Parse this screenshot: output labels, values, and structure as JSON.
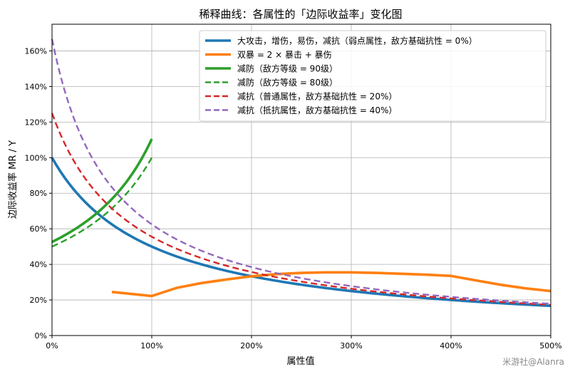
{
  "chart_data": {
    "type": "line",
    "title": "稀释曲线：各属性的「边际收益率」变化图",
    "xlabel": "属性值",
    "ylabel": "边际收益率 MR / Y",
    "xlim": [
      0,
      5
    ],
    "ylim": [
      0,
      1.75
    ],
    "x_ticks": [
      0,
      1,
      2,
      3,
      4,
      5
    ],
    "x_tick_labels": [
      "0%",
      "100%",
      "200%",
      "300%",
      "400%",
      "500%"
    ],
    "y_ticks": [
      0,
      0.2,
      0.4,
      0.6,
      0.8,
      1.0,
      1.2,
      1.4,
      1.6
    ],
    "y_tick_labels": [
      "0%",
      "20%",
      "40%",
      "60%",
      "80%",
      "100%",
      "120%",
      "140%",
      "160%"
    ],
    "grid": true,
    "legend_position": "top-right",
    "series": [
      {
        "name": "大攻击，增伤，易伤，减抗（弱点属性，敌方基础抗性 = 0%）",
        "color": "#1f77b4",
        "style": "solid",
        "curve": "1/(1+x)",
        "coef": 1.0,
        "x_range": [
          0,
          5
        ]
      },
      {
        "name": "双暴 = 2 × 暴击 + 暴伤",
        "color": "#ff7f0e",
        "style": "solid",
        "x": [
          0.6,
          1.0,
          1.25,
          1.5,
          1.75,
          2.0,
          2.25,
          2.5,
          2.75,
          3.0,
          3.25,
          3.5,
          3.75,
          4.0,
          4.25,
          4.5,
          4.75,
          5.0
        ],
        "y": [
          0.245,
          0.222,
          0.268,
          0.295,
          0.315,
          0.333,
          0.345,
          0.352,
          0.355,
          0.355,
          0.352,
          0.347,
          0.342,
          0.335,
          0.31,
          0.285,
          0.265,
          0.25
        ]
      },
      {
        "name": "减防（敌方等级 = 90级）",
        "color": "#2ca02c",
        "style": "solid",
        "curve": "coef/(1-c*x)",
        "coef": 0.526,
        "c": 0.524,
        "x_range": [
          0,
          1
        ]
      },
      {
        "name": "减防（敌方等级 = 80级）",
        "color": "#2ca02c",
        "style": "dashed",
        "curve": "coef/(1-c*x)",
        "coef": 0.5,
        "c": 0.5,
        "x_range": [
          0,
          1
        ]
      },
      {
        "name": "减抗（普通属性，敌方基础抗性 = 20%）",
        "color": "#d62728",
        "style": "dashed",
        "curve": "coef/(1+coef*x)",
        "coef": 1.25,
        "x_range": [
          0,
          5
        ]
      },
      {
        "name": "减抗（抵抗属性，敌方基础抗性 = 40%）",
        "color": "#9467bd",
        "style": "dashed",
        "curve": "coef/(1+coef*x)",
        "coef": 1.667,
        "x_range": [
          0,
          5
        ]
      }
    ]
  },
  "watermark": "米游社@Alanra"
}
